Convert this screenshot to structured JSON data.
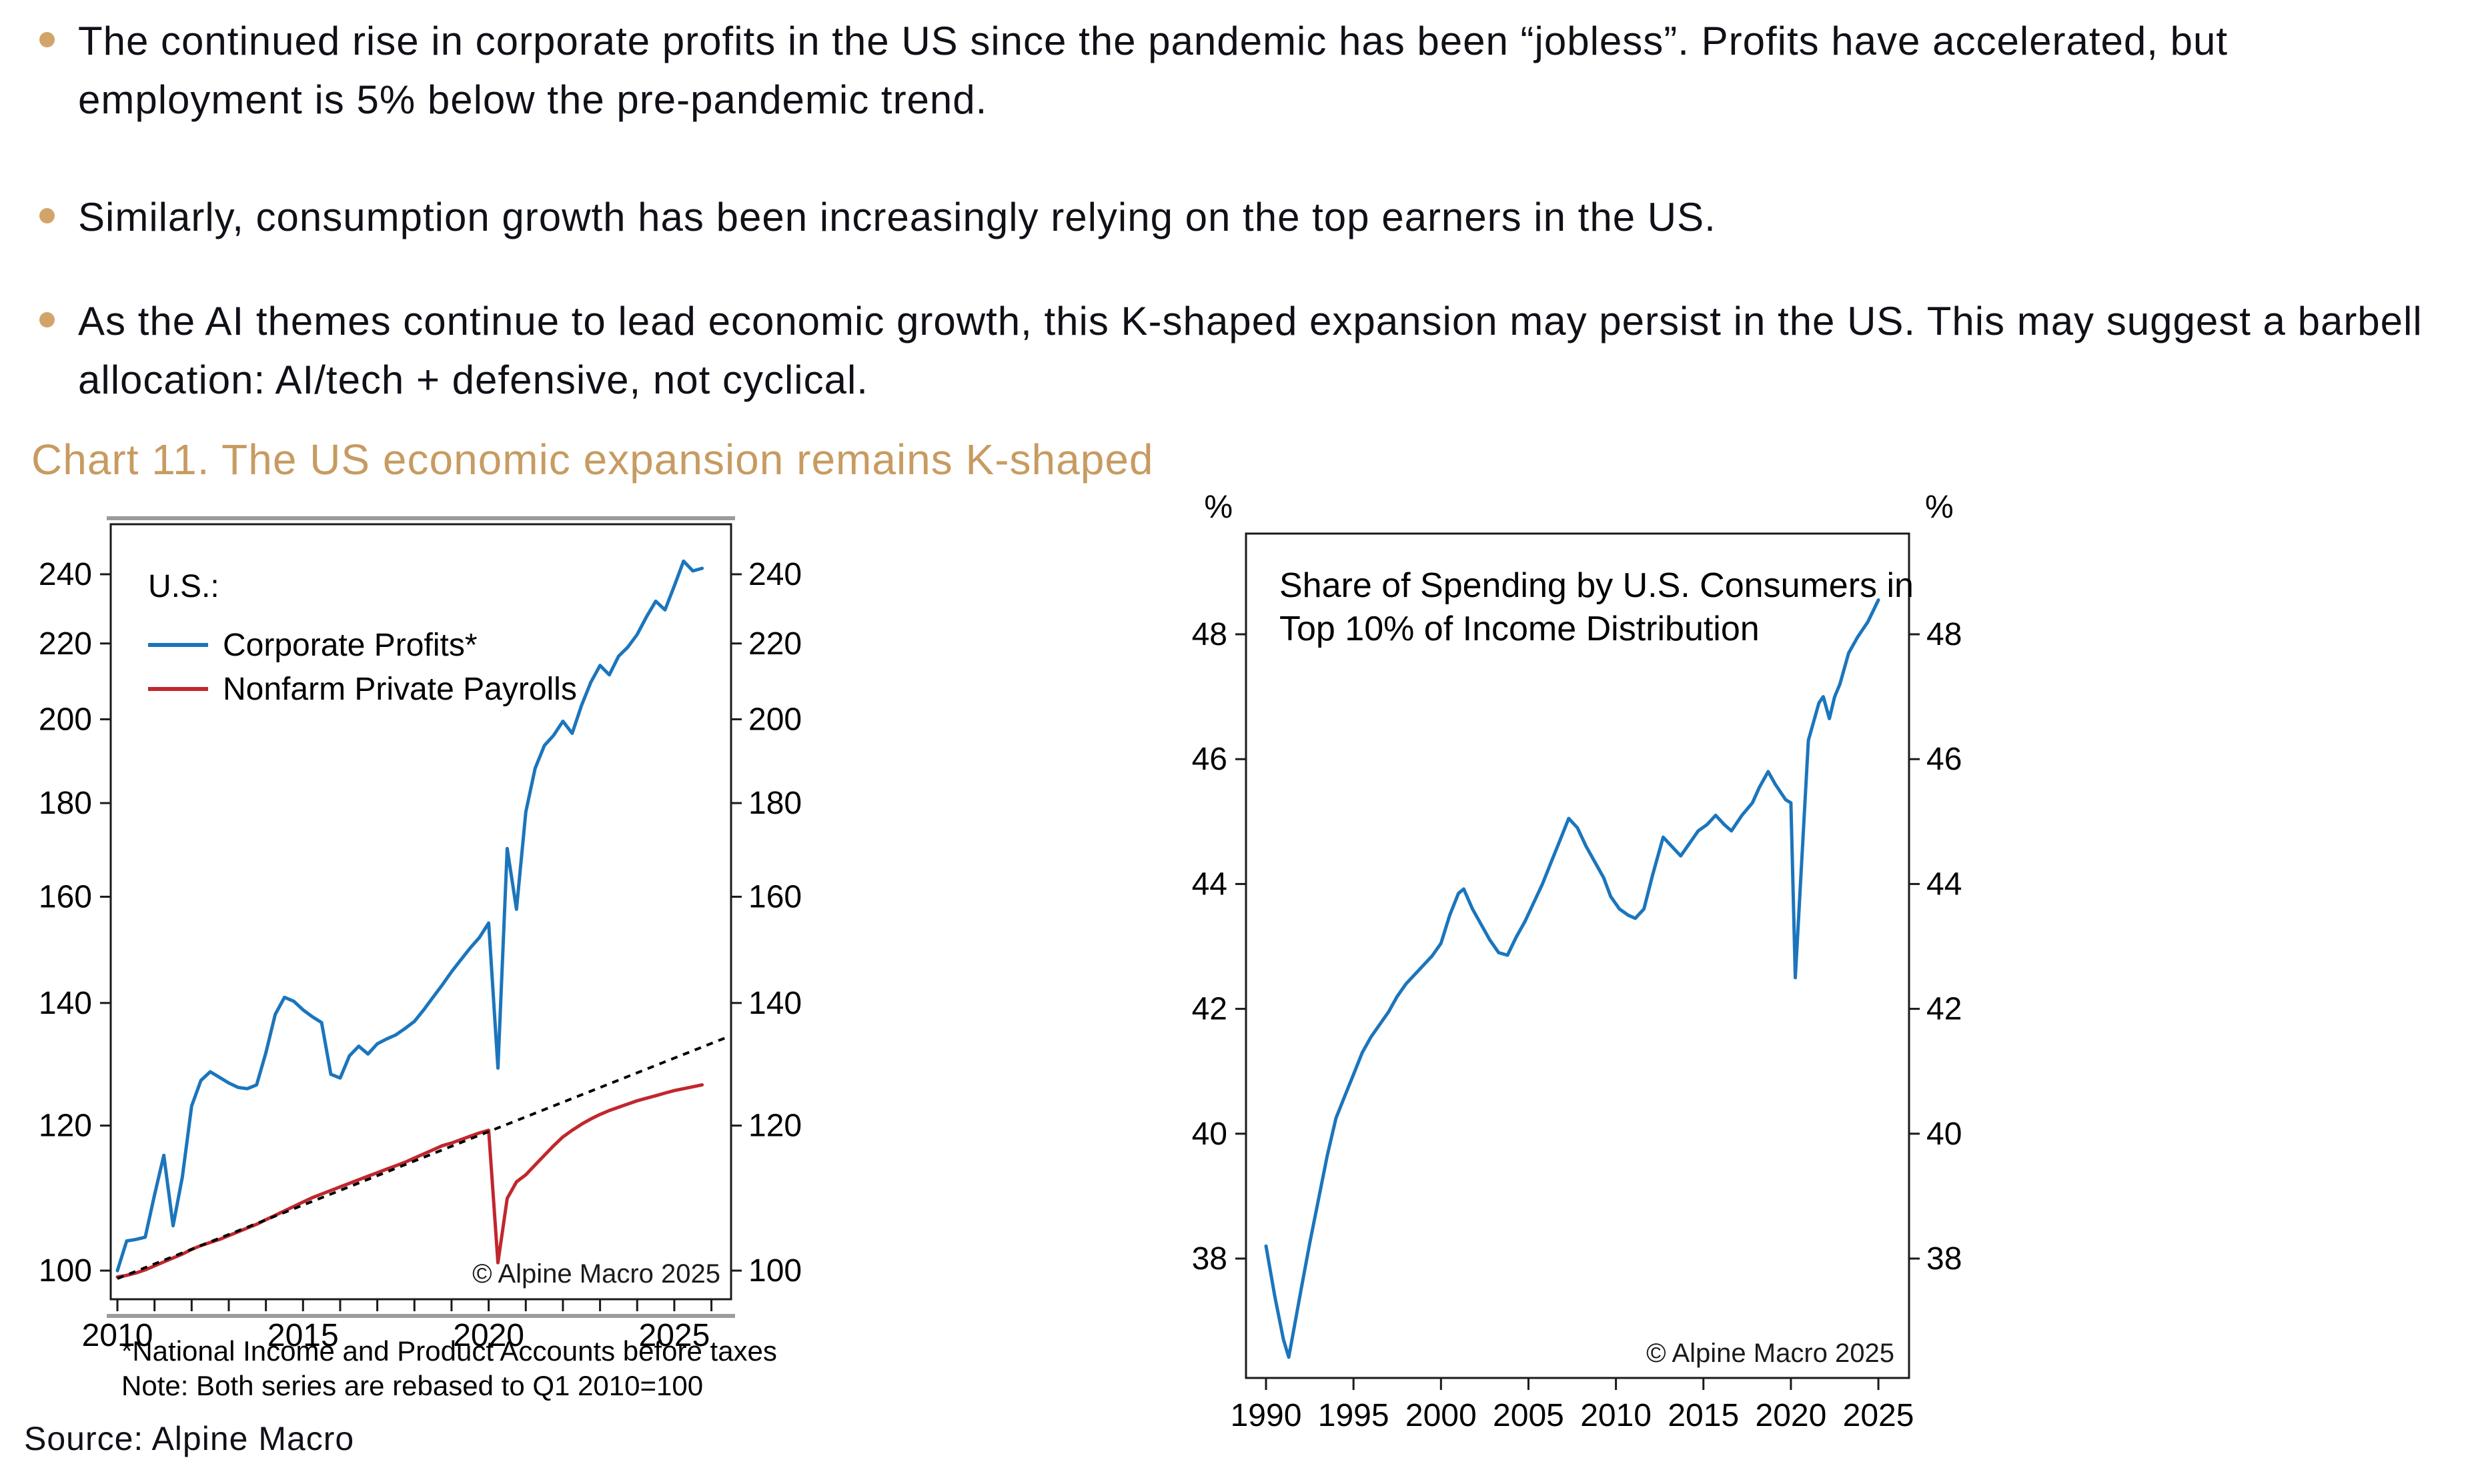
{
  "page": {
    "background": "#ffffff",
    "text_color": "#101018",
    "bullet_color": "#D2A469",
    "title_color": "#C79B61"
  },
  "bullets": [
    {
      "lines": [
        "The continued rise in corporate profits in the US since the pandemic has been “jobless”. Profits have",
        "accelerated, but employment is 5% below the pre-pandemic trend."
      ]
    },
    {
      "lines": [
        "Similarly, consumption growth has been increasingly relying on the top earners in the US."
      ]
    },
    {
      "lines": [
        "As the AI themes continue to lead economic growth, this K-shaped expansion may persist in the US. This may",
        "suggest a barbell allocation: AI/tech + defensive, not cyclical."
      ]
    }
  ],
  "section_title": "Chart 11. The US economic expansion remains K-shaped",
  "source_line": "Source: Alpine Macro",
  "chart_data": [
    {
      "type": "line",
      "name": "us-profits-vs-payrolls",
      "legend_title": "U.S.:",
      "y_scale": "log",
      "y_ticks": [
        100,
        120,
        140,
        160,
        180,
        200,
        220,
        240
      ],
      "x_major_ticks": [
        2010,
        2015,
        2020,
        2025
      ],
      "x_minor_from": 2010,
      "x_minor_to": 2026,
      "xlim": [
        2009.85,
        2026.55
      ],
      "copyright": "© Alpine Macro 2025",
      "footnotes": [
        "*National Income and Product Accounts before taxes",
        "Note: Both series are rebased to Q1 2010=100"
      ],
      "series": [
        {
          "name": "Corporate Profits*",
          "color": "#1b75bc",
          "x_start": 2010,
          "x_step": 0.25,
          "values": [
            100,
            103.8,
            104.0,
            104.3,
            110.0,
            115.6,
            105.8,
            112.5,
            123.0,
            127.0,
            128.4,
            127.5,
            126.6,
            125.9,
            125.7,
            126.3,
            131.5,
            138.0,
            141.0,
            140.3,
            138.8,
            137.6,
            136.6,
            128.0,
            127.4,
            131.0,
            132.6,
            131.3,
            133.0,
            133.8,
            134.5,
            135.6,
            136.8,
            138.8,
            141.0,
            143.2,
            145.6,
            147.8,
            150.0,
            152.0,
            154.8,
            129.0,
            170.0,
            157.5,
            178.0,
            188.0,
            193.5,
            196.0,
            199.5,
            196.5,
            203.5,
            209.5,
            214.0,
            211.5,
            216.5,
            219.0,
            222.5,
            227.5,
            232.0,
            229.5,
            236.5,
            244.0,
            241.0,
            241.8
          ]
        },
        {
          "name": "Nonfarm Private Payrolls",
          "color": "#c0272d",
          "x_start": 2010,
          "x_step": 0.25,
          "values": [
            99.2,
            99.4,
            99.7,
            100.1,
            100.6,
            101.1,
            101.6,
            102.1,
            102.7,
            103.2,
            103.6,
            104.0,
            104.5,
            105.0,
            105.5,
            106.0,
            106.6,
            107.2,
            107.8,
            108.4,
            109.0,
            109.6,
            110.1,
            110.6,
            111.1,
            111.6,
            112.1,
            112.6,
            113.1,
            113.6,
            114.1,
            114.6,
            115.2,
            115.8,
            116.4,
            117.0,
            117.4,
            117.9,
            118.4,
            118.9,
            119.3,
            101.0,
            109.5,
            111.8,
            112.8,
            114.2,
            115.6,
            117.0,
            118.3,
            119.3,
            120.2,
            121.0,
            121.7,
            122.3,
            122.8,
            123.3,
            123.8,
            124.2,
            124.6,
            125.0,
            125.4,
            125.7,
            126.0,
            126.3
          ]
        },
        {
          "name": "pre-pandemic trend",
          "style": "dotted",
          "color": "#000000",
          "x": [
            2010,
            2026.5
          ],
          "values": [
            99,
            134.3
          ]
        }
      ]
    },
    {
      "type": "line",
      "name": "top10-spending-share",
      "title_lines": [
        "Share of Spending by U.S. Consumers in",
        "Top 10% of Income Distribution"
      ],
      "y_scale": "linear",
      "y_unit": "%",
      "y_ticks": [
        38,
        40,
        42,
        44,
        46,
        48
      ],
      "x_major_ticks": [
        1990,
        1995,
        2000,
        2005,
        2010,
        2015,
        2020,
        2025
      ],
      "xlim": [
        1988.9,
        2026.7
      ],
      "ylim": [
        36.1,
        49.6
      ],
      "copyright": "© Alpine Macro 2025",
      "series": [
        {
          "name": "Share of Spending by Top 10%",
          "color": "#1b75bc",
          "x": [
            1990,
            1990.5,
            1991,
            1991.3,
            1992,
            1992.5,
            1993,
            1993.5,
            1994,
            1994.5,
            1995,
            1995.5,
            1996,
            1996.5,
            1997,
            1997.5,
            1998,
            1998.5,
            1999,
            1999.5,
            2000,
            2000.5,
            2001,
            2001.3,
            2001.8,
            2002.3,
            2002.8,
            2003.3,
            2003.8,
            2004.3,
            2004.8,
            2005.3,
            2005.8,
            2006.3,
            2006.8,
            2007.3,
            2007.8,
            2008.3,
            2008.8,
            2009.3,
            2009.7,
            2010.2,
            2010.7,
            2011.1,
            2011.6,
            2012.1,
            2012.7,
            2013.2,
            2013.7,
            2014.2,
            2014.7,
            2015.2,
            2015.7,
            2016.2,
            2016.6,
            2017.2,
            2017.8,
            2018.2,
            2018.7,
            2019.1,
            2019.7,
            2020.0,
            2020.25,
            2021.0,
            2021.6,
            2021.85,
            2022.2,
            2022.5,
            2022.8,
            2023.3,
            2023.8,
            2024.4,
            2025.0
          ],
          "values": [
            38.2,
            37.4,
            36.7,
            36.42,
            37.5,
            38.25,
            38.95,
            39.65,
            40.25,
            40.6,
            40.95,
            41.3,
            41.55,
            41.75,
            41.95,
            42.2,
            42.4,
            42.55,
            42.7,
            42.85,
            43.05,
            43.5,
            43.85,
            43.92,
            43.6,
            43.35,
            43.1,
            42.9,
            42.86,
            43.15,
            43.4,
            43.7,
            44.0,
            44.35,
            44.7,
            45.05,
            44.9,
            44.6,
            44.35,
            44.1,
            43.8,
            43.6,
            43.5,
            43.45,
            43.6,
            44.15,
            44.75,
            44.6,
            44.45,
            44.65,
            44.85,
            44.95,
            45.1,
            44.95,
            44.85,
            45.1,
            45.3,
            45.55,
            45.8,
            45.6,
            45.35,
            45.3,
            42.5,
            46.3,
            46.9,
            47.0,
            46.65,
            47.0,
            47.2,
            47.7,
            47.95,
            48.2,
            48.55
          ]
        }
      ]
    }
  ]
}
